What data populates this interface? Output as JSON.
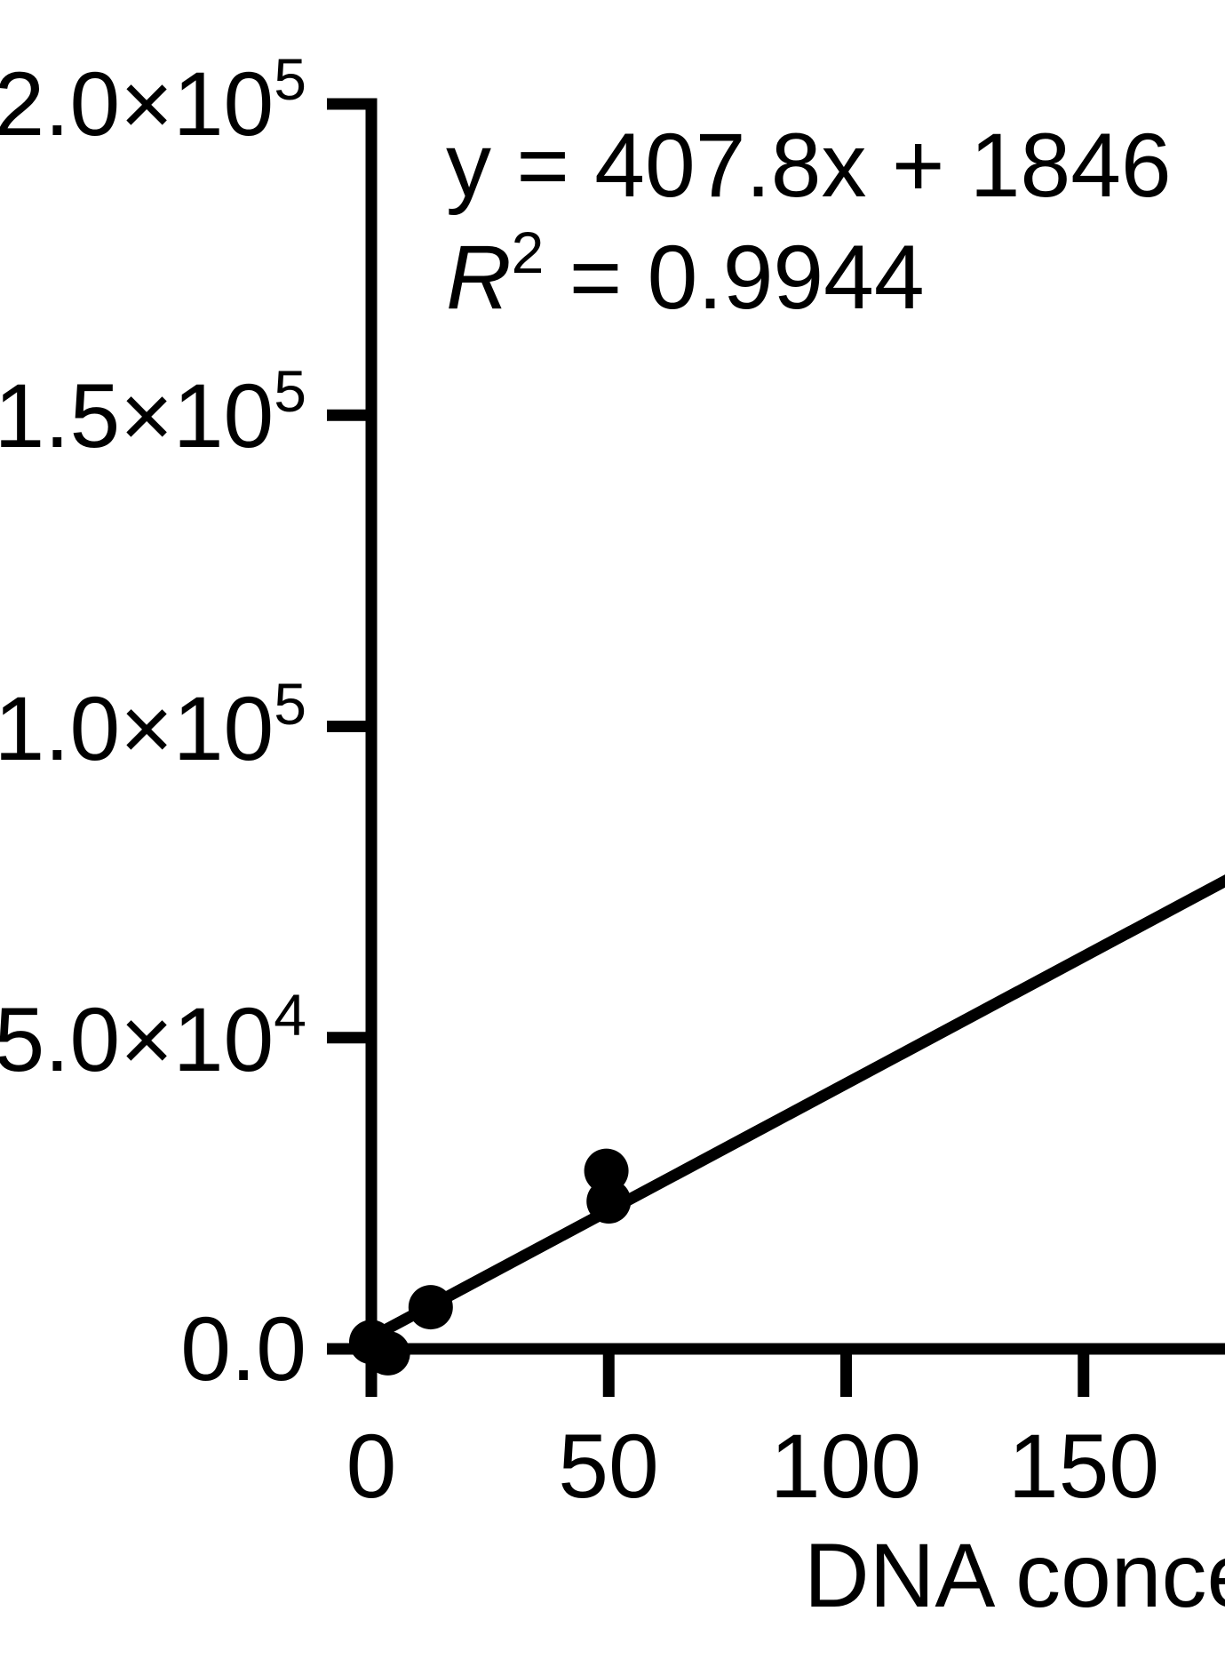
{
  "figure": {
    "background_color": "#ffffff",
    "ink_color": "#000000"
  },
  "annotation": {
    "equation": "y = 407.8x + 1846",
    "r2_symbol": "R",
    "r2_superscript": "2",
    "r2_value": " = 0.9944"
  },
  "yaxis": {
    "labels": [
      {
        "base": "2.0×10",
        "exp": "5",
        "value": 200000
      },
      {
        "base": "1.5×10",
        "exp": "5",
        "value": 150000
      },
      {
        "base": "1.0×10",
        "exp": "5",
        "value": 100000
      },
      {
        "base": "5.0×10",
        "exp": "4",
        "value": 50000
      },
      {
        "base": "0.0",
        "exp": "",
        "value": 0
      }
    ]
  },
  "xaxis": {
    "labels": [
      "0",
      "50",
      "100",
      "150"
    ],
    "title": "DNA conce"
  },
  "chart_data": {
    "type": "scatter",
    "title": "",
    "xlabel": "DNA conce",
    "ylabel": "",
    "xlim": [
      0,
      180.5
    ],
    "ylim": [
      0,
      200000
    ],
    "x_ticks": [
      0,
      50,
      100,
      150
    ],
    "y_ticks": [
      0,
      50000,
      100000,
      150000,
      200000
    ],
    "grid": false,
    "points": [
      {
        "x": 0,
        "y": 1100
      },
      {
        "x": 3.5,
        "y": -700
      },
      {
        "x": 12.5,
        "y": 6700
      },
      {
        "x": 49.5,
        "y": 28600
      },
      {
        "x": 50,
        "y": 23700
      }
    ],
    "fit": {
      "slope": 407.8,
      "intercept": 1846,
      "r_squared": 0.9944,
      "x_start": 0,
      "x_end": 180.5
    },
    "marker": {
      "shape": "circle",
      "radius_px": 25,
      "color": "#000000"
    },
    "line_color": "#000000",
    "legend": null
  }
}
